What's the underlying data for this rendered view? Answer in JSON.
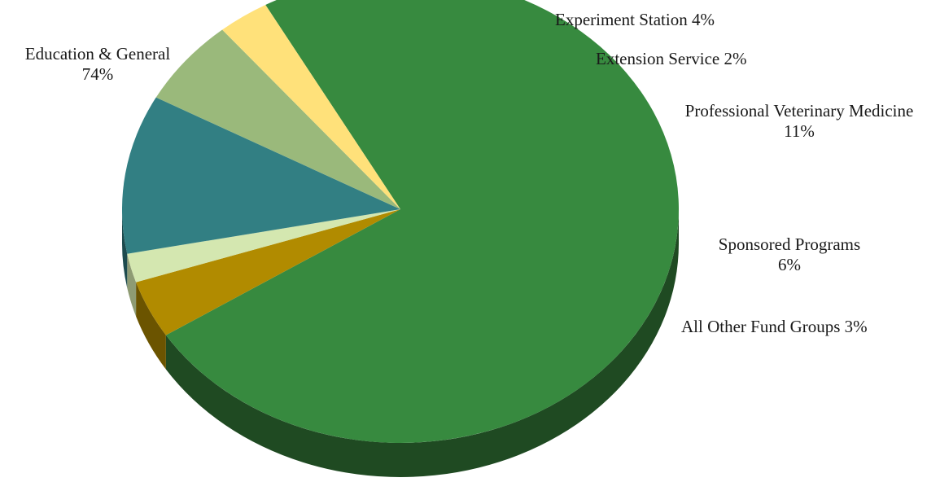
{
  "chart_data": {
    "type": "pie",
    "style": "3d-tilted",
    "slices": [
      {
        "label": "Education & General",
        "value": 74,
        "value_label": "74%",
        "color": "#378A3F",
        "side_color": "#1F4A22",
        "label_lines": [
          "Education & General",
          "74%"
        ],
        "label_anchor": "middle"
      },
      {
        "label": "Experiment Station",
        "value": 4,
        "value_label": "4%",
        "color": "#B18B00",
        "side_color": "#6B5400",
        "label_lines": [
          "Experiment Station 4%"
        ],
        "label_anchor": "start"
      },
      {
        "label": "Extension Service",
        "value": 2,
        "value_label": "2%",
        "color": "#D4E7B0",
        "side_color": "#8E9B73",
        "label_lines": [
          "Extension Service 2%"
        ],
        "label_anchor": "start"
      },
      {
        "label": "Professional Veterinary Medicine",
        "value": 11,
        "value_label": "11%",
        "color": "#327F83",
        "side_color": "#1D4B4E",
        "label_lines": [
          "Professional Veterinary Medicine",
          "11%"
        ],
        "label_anchor": "middle"
      },
      {
        "label": "Sponsored Programs",
        "value": 6,
        "value_label": "6%",
        "color": "#9AB97B",
        "side_color": "#5C7049",
        "label_lines": [
          "Sponsored Programs",
          "6%"
        ],
        "label_anchor": "middle"
      },
      {
        "label": "All Other Fund Groups",
        "value": 3,
        "value_label": "3%",
        "color": "#FFE17A",
        "side_color": "#7A6438",
        "label_lines": [
          "All Other Fund Groups 3%"
        ],
        "label_anchor": "start"
      }
    ]
  }
}
